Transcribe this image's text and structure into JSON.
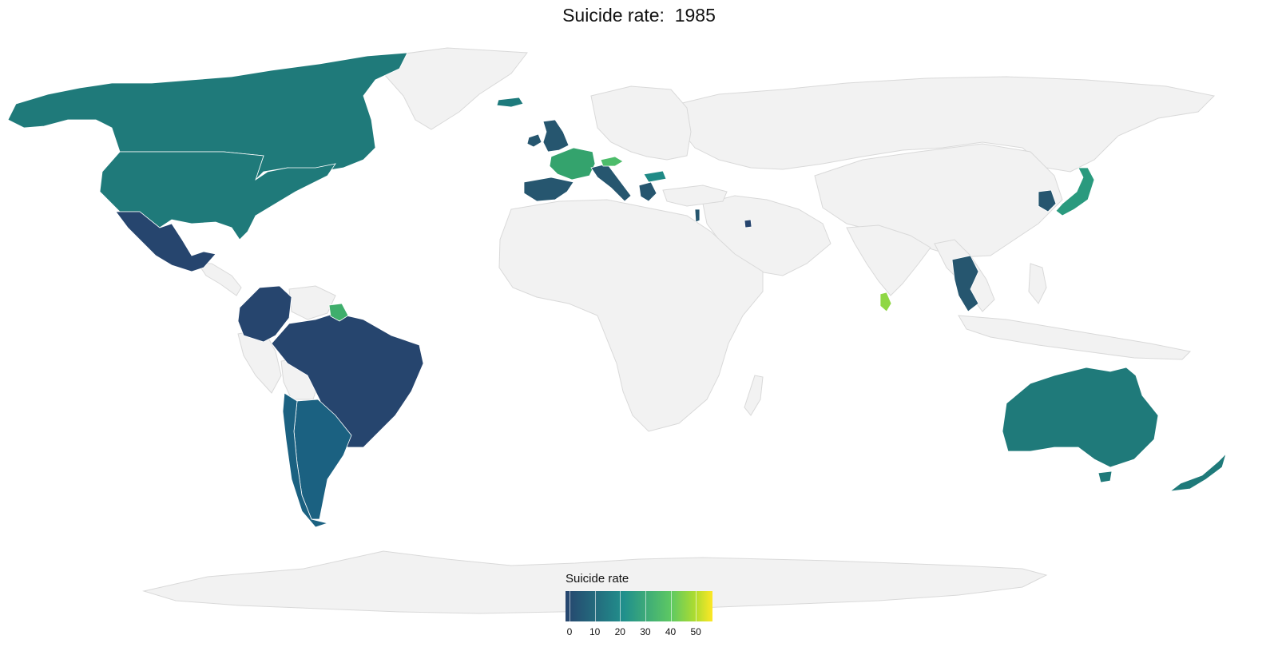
{
  "title": "Suicide rate:  1985",
  "legend": {
    "title": "Suicide rate",
    "ticks": [
      "0",
      "10",
      "20",
      "30",
      "40",
      "50"
    ],
    "scale_min": 0,
    "scale_max": 55,
    "colormap": "viridis"
  },
  "colors": {
    "no_data": "#f2f2f2",
    "border": "#d9d9d9",
    "low": "#26456e",
    "mid": "#21908c",
    "high_green": "#5ec962",
    "max": "#fde725"
  },
  "regions": [
    {
      "name": "canada",
      "rate": 13
    },
    {
      "name": "united-states",
      "rate": 13
    },
    {
      "name": "mexico",
      "rate": 2
    },
    {
      "name": "colombia",
      "rate": 3
    },
    {
      "name": "brazil",
      "rate": 3
    },
    {
      "name": "argentina",
      "rate": 8
    },
    {
      "name": "chile",
      "rate": 6
    },
    {
      "name": "suriname",
      "rate": 27
    },
    {
      "name": "united-kingdom",
      "rate": 8
    },
    {
      "name": "ireland",
      "rate": 8
    },
    {
      "name": "france",
      "rate": 25
    },
    {
      "name": "spain",
      "rate": 7
    },
    {
      "name": "italy",
      "rate": 8
    },
    {
      "name": "austria",
      "rate": 30
    },
    {
      "name": "greece",
      "rate": 4
    },
    {
      "name": "bulgaria",
      "rate": 16
    },
    {
      "name": "iceland",
      "rate": 15
    },
    {
      "name": "israel",
      "rate": 7
    },
    {
      "name": "kuwait",
      "rate": 2
    },
    {
      "name": "sri-lanka",
      "rate": 38
    },
    {
      "name": "thailand",
      "rate": 6
    },
    {
      "name": "south-korea",
      "rate": 9
    },
    {
      "name": "japan",
      "rate": 21
    },
    {
      "name": "australia",
      "rate": 12
    },
    {
      "name": "new-zealand",
      "rate": 12
    }
  ]
}
